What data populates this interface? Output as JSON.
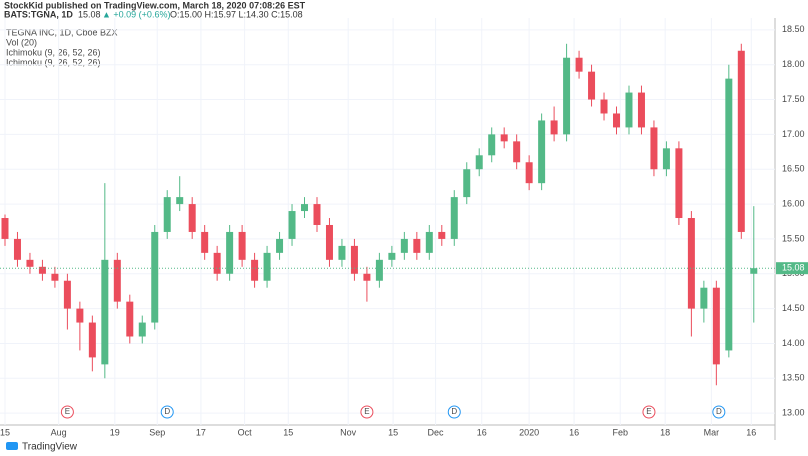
{
  "header": {
    "publisher": "StockKid published on TradingView.com, March 18, 2020 07:08:26 EST",
    "symbol": "BATS:TGNA, 1D",
    "last": "15.08",
    "change": "▲ +0.09 (+0.6%)",
    "ohlc": "O:15.00 H:15.97 L:14.30 C:15.08"
  },
  "legend": [
    "TEGNA INC, 1D, Cboe BZX",
    "Vol (20)",
    "Ichimoku (9, 26, 52, 26)",
    "Ichimoku (9, 26, 52, 26)"
  ],
  "events": [
    {
      "label": "E",
      "x": 5
    },
    {
      "label": "D",
      "x": 13
    },
    {
      "label": "E",
      "x": 29
    },
    {
      "label": "D",
      "x": 36
    },
    {
      "label": "E",
      "x": 51.6
    },
    {
      "label": "D",
      "x": 57.2
    }
  ],
  "footer": "TradingView",
  "chart_data": {
    "type": "candlestick",
    "up_color": "#53b987",
    "down_color": "#eb4d5c",
    "ylim": [
      12.83,
      18.67
    ],
    "yticks": [
      {
        "value": 13,
        "label": "13.00"
      },
      {
        "value": 13.5,
        "label": "13.50"
      },
      {
        "value": 14,
        "label": "14.00"
      },
      {
        "value": 14.5,
        "label": "14.50"
      },
      {
        "value": 15,
        "label": "15.00"
      },
      {
        "value": 15.5,
        "label": "15.50"
      },
      {
        "value": 16,
        "label": "16.00"
      },
      {
        "value": 16.5,
        "label": "16.50"
      },
      {
        "value": 17,
        "label": "17.00"
      },
      {
        "value": 17.5,
        "label": "17.50"
      },
      {
        "value": 18,
        "label": "18.00"
      },
      {
        "value": 18.5,
        "label": "18.50"
      }
    ],
    "xlim": [
      -0.4,
      61.7
    ],
    "xticks": [
      {
        "value": 0,
        "label": "15"
      },
      {
        "value": 4.3,
        "label": "Aug"
      },
      {
        "value": 8.8,
        "label": "19"
      },
      {
        "value": 12.2,
        "label": "Sep"
      },
      {
        "value": 15.7,
        "label": "17"
      },
      {
        "value": 19.2,
        "label": "Oct"
      },
      {
        "value": 22.7,
        "label": "15"
      },
      {
        "value": 27.5,
        "label": "Nov"
      },
      {
        "value": 31.1,
        "label": "15"
      },
      {
        "value": 34.5,
        "label": "Dec"
      },
      {
        "value": 38.2,
        "label": "16"
      },
      {
        "value": 42,
        "label": "2020"
      },
      {
        "value": 45.6,
        "label": "16"
      },
      {
        "value": 49.3,
        "label": "Feb"
      },
      {
        "value": 52.9,
        "label": "18"
      },
      {
        "value": 56.6,
        "label": "Mar"
      },
      {
        "value": 59.8,
        "label": "16"
      }
    ],
    "last_price": {
      "value": 15.08,
      "label": "15.08"
    },
    "candles": [
      [
        15.8,
        15.85,
        15.4,
        15.5
      ],
      [
        15.5,
        15.6,
        15.1,
        15.2
      ],
      [
        15.2,
        15.3,
        15.0,
        15.1
      ],
      [
        15.1,
        15.2,
        14.9,
        15.0
      ],
      [
        15.0,
        15.1,
        14.8,
        14.9
      ],
      [
        14.9,
        15.0,
        14.2,
        14.5
      ],
      [
        14.5,
        14.6,
        13.9,
        14.3
      ],
      [
        14.3,
        14.4,
        13.6,
        13.8
      ],
      [
        13.7,
        16.3,
        13.5,
        15.2
      ],
      [
        15.2,
        15.3,
        14.5,
        14.6
      ],
      [
        14.6,
        14.7,
        14.0,
        14.1
      ],
      [
        14.1,
        14.4,
        14.0,
        14.3
      ],
      [
        14.3,
        15.7,
        14.2,
        15.6
      ],
      [
        15.6,
        16.2,
        15.5,
        16.1
      ],
      [
        16.0,
        16.4,
        15.9,
        16.1
      ],
      [
        16.0,
        16.1,
        15.5,
        15.6
      ],
      [
        15.6,
        15.7,
        15.2,
        15.3
      ],
      [
        15.3,
        15.4,
        14.9,
        15.0
      ],
      [
        15.0,
        15.7,
        14.9,
        15.6
      ],
      [
        15.6,
        15.7,
        15.1,
        15.2
      ],
      [
        15.2,
        15.3,
        14.8,
        14.9
      ],
      [
        14.9,
        15.4,
        14.8,
        15.3
      ],
      [
        15.3,
        15.6,
        15.2,
        15.5
      ],
      [
        15.5,
        16.0,
        15.4,
        15.9
      ],
      [
        15.9,
        16.1,
        15.8,
        16.0
      ],
      [
        16.0,
        16.1,
        15.6,
        15.7
      ],
      [
        15.7,
        15.8,
        15.1,
        15.2
      ],
      [
        15.2,
        15.5,
        15.1,
        15.4
      ],
      [
        15.4,
        15.5,
        14.9,
        15.0
      ],
      [
        15.0,
        15.1,
        14.6,
        14.9
      ],
      [
        14.9,
        15.3,
        14.8,
        15.2
      ],
      [
        15.2,
        15.4,
        15.1,
        15.3
      ],
      [
        15.3,
        15.6,
        15.2,
        15.5
      ],
      [
        15.5,
        15.6,
        15.2,
        15.3
      ],
      [
        15.3,
        15.7,
        15.2,
        15.6
      ],
      [
        15.6,
        15.7,
        15.4,
        15.5
      ],
      [
        15.5,
        16.2,
        15.4,
        16.1
      ],
      [
        16.1,
        16.6,
        16.0,
        16.5
      ],
      [
        16.5,
        16.8,
        16.4,
        16.7
      ],
      [
        16.7,
        17.1,
        16.6,
        17.0
      ],
      [
        17.0,
        17.1,
        16.8,
        16.9
      ],
      [
        16.9,
        17.0,
        16.5,
        16.6
      ],
      [
        16.6,
        16.7,
        16.2,
        16.3
      ],
      [
        16.3,
        17.3,
        16.2,
        17.2
      ],
      [
        17.2,
        17.4,
        16.9,
        17.0
      ],
      [
        17.0,
        18.3,
        16.9,
        18.1
      ],
      [
        18.1,
        18.2,
        17.8,
        17.9
      ],
      [
        17.9,
        18.0,
        17.4,
        17.5
      ],
      [
        17.5,
        17.6,
        17.2,
        17.3
      ],
      [
        17.3,
        17.4,
        17.0,
        17.1
      ],
      [
        17.1,
        17.7,
        17.0,
        17.6
      ],
      [
        17.6,
        17.7,
        17.0,
        17.1
      ],
      [
        17.1,
        17.2,
        16.4,
        16.5
      ],
      [
        16.5,
        16.9,
        16.4,
        16.8
      ],
      [
        16.8,
        16.9,
        15.7,
        15.8
      ],
      [
        15.8,
        15.9,
        14.1,
        14.5
      ],
      [
        14.5,
        14.9,
        14.3,
        14.8
      ],
      [
        14.8,
        14.9,
        13.4,
        13.7
      ],
      [
        13.9,
        18.0,
        13.8,
        17.8
      ],
      [
        18.2,
        18.3,
        15.5,
        15.6
      ],
      [
        15.0,
        15.97,
        14.3,
        15.08
      ]
    ]
  }
}
